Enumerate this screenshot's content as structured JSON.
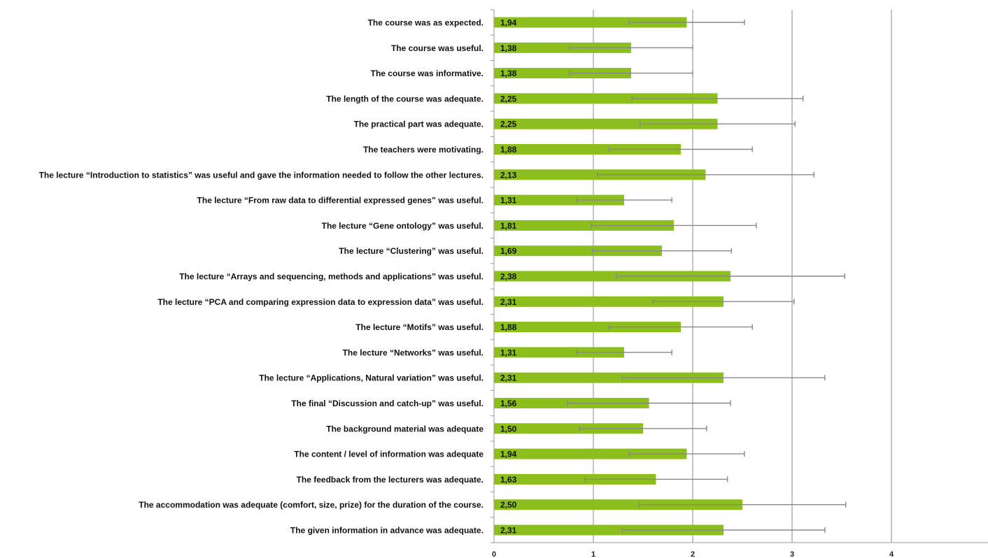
{
  "chart_data": {
    "type": "bar",
    "orientation": "horizontal",
    "title": "",
    "xlabel": "",
    "ylabel": "",
    "xlim": [
      0,
      5
    ],
    "x_ticks": [
      "0",
      "1",
      "2",
      "3",
      "4"
    ],
    "grid": "vertical",
    "bar_color": "#8cbe1e",
    "error_bar_color": "#888888",
    "categories": [
      "The course was as expected.",
      "The course was useful.",
      "The course was informative.",
      "The length of the course was adequate.",
      "The practical part was adequate.",
      "The teachers were motivating.",
      "The lecture “Introduction to statistics” was useful and gave the information needed to follow the other lectures.",
      "The lecture “From raw data to differential expressed genes” was useful.",
      "The lecture “Gene ontology” was useful.",
      "The lecture “Clustering” was useful.",
      "The lecture “Arrays and sequencing, methods and applications” was useful.",
      "The lecture “PCA and comparing expression data to expression data” was useful.",
      "The lecture “Motifs” was useful.",
      "The lecture “Networks” was useful.",
      "The lecture “Applications, Natural variation” was useful.",
      "The final “Discussion and catch-up” was useful.",
      "The background material was adequate",
      "The content / level of information was adequate",
      "The feedback from the lecturers was adequate.",
      "The accommodation was adequate (comfort, size, prize) for the duration of the course.",
      "The given information in advance was adequate."
    ],
    "values": [
      1.94,
      1.38,
      1.38,
      2.25,
      2.25,
      1.88,
      2.13,
      1.31,
      1.81,
      1.69,
      2.38,
      2.31,
      1.88,
      1.31,
      2.31,
      1.56,
      1.5,
      1.94,
      1.63,
      2.5,
      2.31
    ],
    "value_labels": [
      "1,94",
      "1,38",
      "1,38",
      "2,25",
      "2,25",
      "1,88",
      "2,13",
      "1,31",
      "1,81",
      "1,69",
      "2,38",
      "2,31",
      "1,88",
      "1,31",
      "2,31",
      "1,56",
      "1,50",
      "1,94",
      "1,63",
      "2,50",
      "2,31"
    ],
    "errors": [
      0.58,
      0.62,
      0.62,
      0.86,
      0.78,
      0.72,
      1.09,
      0.48,
      0.83,
      0.7,
      1.15,
      0.71,
      0.72,
      0.48,
      1.02,
      0.82,
      0.64,
      0.58,
      0.72,
      1.04,
      1.02
    ]
  }
}
